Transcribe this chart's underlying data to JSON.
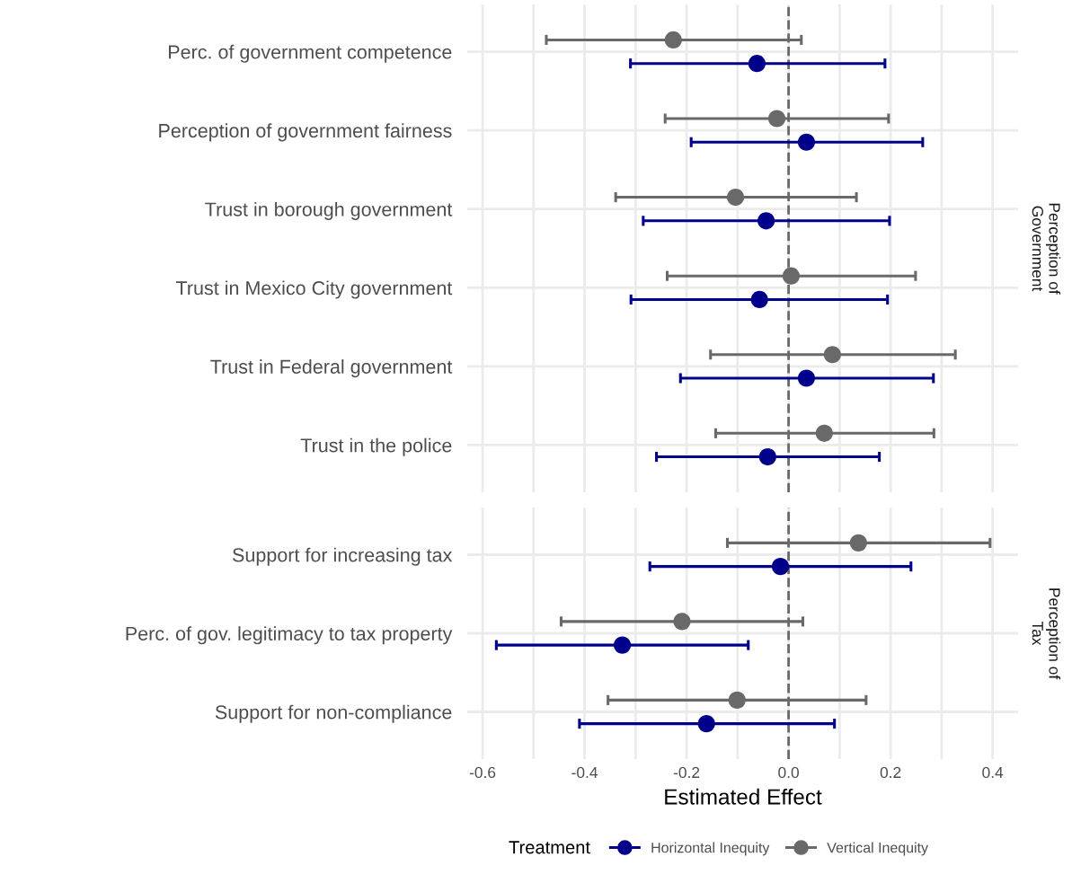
{
  "chart_data": [
    {
      "type": "scatter",
      "orientation": "horizontal",
      "annotations": [
        "Perception of\nGovernment"
      ],
      "categories": [
        "Perc. of government competence",
        "Perception of government fairness",
        "Trust in borough government",
        "Trust in Mexico City government",
        "Trust in Federal government",
        "Trust in the police"
      ],
      "series": [
        {
          "color": "#00008b",
          "values": [
            -0.062,
            0.035,
            -0.044,
            -0.057,
            0.035,
            -0.041
          ],
          "errors": [
            [
              -0.31,
              0.189
            ],
            [
              -0.191,
              0.263
            ],
            [
              -0.285,
              0.198
            ],
            [
              -0.309,
              0.194
            ],
            [
              -0.212,
              0.284
            ],
            [
              -0.259,
              0.178
            ]
          ]
        },
        {
          "color": "#696969",
          "values": [
            -0.226,
            -0.023,
            -0.104,
            0.005,
            0.086,
            0.07
          ],
          "errors": [
            [
              -0.475,
              0.025
            ],
            [
              -0.242,
              0.196
            ],
            [
              -0.339,
              0.133
            ],
            [
              -0.238,
              0.249
            ],
            [
              -0.153,
              0.327
            ],
            [
              -0.143,
              0.285
            ]
          ]
        }
      ],
      "xlim": [
        -0.63,
        0.45
      ],
      "xticks": [
        -0.6,
        {
          "value": -0.5,
          "label": null
        },
        -0.4,
        {
          "value": -0.3,
          "label": null
        },
        -0.2,
        {
          "value": -0.1,
          "label": null
        },
        0.0,
        {
          "value": 0.1,
          "label": null
        },
        0.2,
        {
          "value": 0.3,
          "label": null
        },
        0.4
      ],
      "tick_labels": "y",
      "ref_lines": [
        {
          "axis": "x",
          "value": 0,
          "line_style": "dashed",
          "color": "#696969"
        }
      ],
      "grid": true,
      "marker": "circle"
    },
    {
      "type": "scatter",
      "orientation": "horizontal",
      "annotations": [
        "Perception of\nTax"
      ],
      "xlabel": "Estimated Effect",
      "legend_title": "Treatment",
      "categories": [
        "Support for increasing tax",
        "Perc. of gov. legitimacy to tax property",
        "Support for non-compliance"
      ],
      "series": [
        {
          "name": "Horizontal Inequity",
          "color": "#00008b",
          "values": [
            -0.016,
            -0.326,
            -0.161
          ],
          "errors": [
            [
              -0.272,
              0.24
            ],
            [
              -0.573,
              -0.079
            ],
            [
              -0.41,
              0.09
            ]
          ]
        },
        {
          "name": "Vertical Inequity",
          "color": "#696969",
          "values": [
            0.137,
            -0.209,
            -0.101
          ],
          "errors": [
            [
              -0.12,
              0.395
            ],
            [
              -0.446,
              0.028
            ],
            [
              -0.354,
              0.152
            ]
          ]
        }
      ],
      "xlim": [
        -0.63,
        0.45
      ],
      "xticks": [
        -0.6,
        {
          "value": -0.5,
          "label": null
        },
        -0.4,
        {
          "value": -0.3,
          "label": null
        },
        -0.2,
        {
          "value": -0.1,
          "label": null
        },
        {
          "value": 0,
          "label": "0.0"
        },
        {
          "value": 0.1,
          "label": null
        },
        0.2,
        {
          "value": 0.3,
          "label": null
        },
        0.4
      ],
      "ref_lines": [
        {
          "axis": "x",
          "value": 0,
          "line_style": "dashed",
          "color": "#696969"
        }
      ],
      "grid": true,
      "marker": "circle",
      "legend": "bottom"
    }
  ]
}
